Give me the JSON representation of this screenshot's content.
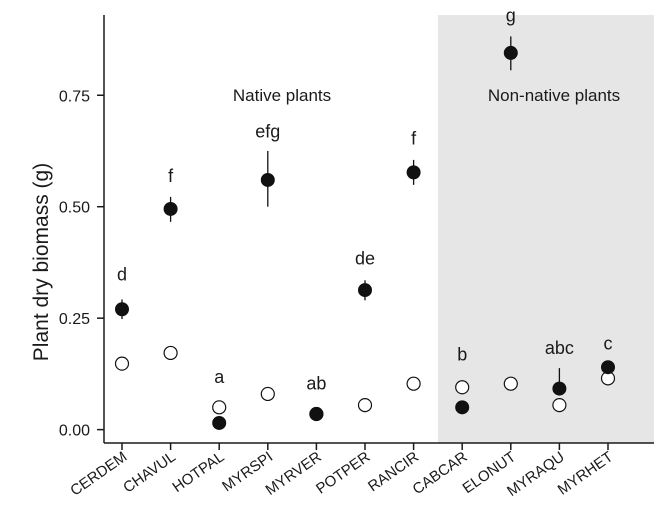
{
  "chart_data": {
    "type": "scatter",
    "ylabel": "Plant dry biomass (g)",
    "xlabel": "",
    "ylim": [
      -0.03,
      0.93
    ],
    "yticks": [
      0.0,
      0.25,
      0.5,
      0.75
    ],
    "ytick_labels": [
      "0.00",
      "0.25",
      "0.50",
      "0.75"
    ],
    "categories": [
      "CERDEM",
      "CHAVUL",
      "HOTPAL",
      "MYRSPI",
      "MYRVER",
      "POTPER",
      "RANCIR",
      "CABCAR",
      "ELONUT",
      "MYRAQU",
      "MYRHET"
    ],
    "group_labels": [
      "Native plants",
      "Non-native plants"
    ],
    "shaded_region": {
      "label": "Non-native plants",
      "start_category": "CABCAR",
      "end_category": "MYRHET",
      "color": "#e6e6e6"
    },
    "series": [
      {
        "marker": "filled",
        "color": "#111111",
        "values": [
          0.27,
          0.495,
          0.015,
          0.56,
          0.035,
          0.313,
          0.577,
          0.05,
          null,
          0.092,
          0.14
        ],
        "error_upper": [
          0.292,
          0.522,
          null,
          0.625,
          null,
          0.335,
          0.605,
          null,
          null,
          0.138,
          0.15
        ],
        "error_lower": [
          0.248,
          0.466,
          null,
          0.5,
          null,
          0.29,
          0.549,
          null,
          null,
          null,
          null
        ]
      },
      {
        "marker": "open",
        "color": "#ffffff",
        "values": [
          0.148,
          0.172,
          0.05,
          0.08,
          0.035,
          0.055,
          0.103,
          0.095,
          0.103,
          0.055,
          0.115
        ]
      }
    ],
    "extra_points": [
      {
        "category": "ELONUT",
        "value": 0.845,
        "upper": 0.882,
        "lower": 0.806,
        "marker": "filled"
      }
    ],
    "annotations": [
      {
        "category": "CERDEM",
        "text": "d",
        "value": 0.335
      },
      {
        "category": "CHAVUL",
        "text": "f",
        "value": 0.555
      },
      {
        "category": "HOTPAL",
        "text": "a",
        "value": 0.105
      },
      {
        "category": "MYRSPI",
        "text": "efg",
        "value": 0.655
      },
      {
        "category": "MYRVER",
        "text": "ab",
        "value": 0.09
      },
      {
        "category": "POTPER",
        "text": "de",
        "value": 0.37
      },
      {
        "category": "RANCIR",
        "text": "f",
        "value": 0.64
      },
      {
        "category": "CABCAR",
        "text": "b",
        "value": 0.155
      },
      {
        "category": "ELONUT",
        "text": "g",
        "value": 0.915
      },
      {
        "category": "MYRAQU",
        "text": "abc",
        "value": 0.17
      },
      {
        "category": "MYRHET",
        "text": "c",
        "value": 0.18
      }
    ],
    "grid": false,
    "legend": "none"
  }
}
